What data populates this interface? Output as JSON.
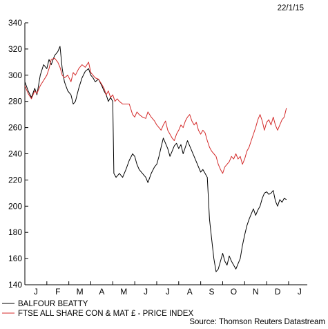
{
  "date_stamp": "22/1/15",
  "source": "Source: Thomson Reuters Datastream",
  "chart_data": {
    "type": "line",
    "x_ticks": [
      "J",
      "F",
      "M",
      "A",
      "M",
      "J",
      "J",
      "A",
      "S",
      "O",
      "N",
      "D",
      "J"
    ],
    "x_range": [
      0,
      12.85
    ],
    "ylim": [
      140,
      340
    ],
    "y_ticks": [
      140,
      160,
      180,
      200,
      220,
      240,
      260,
      280,
      300,
      320,
      340
    ],
    "grid": false,
    "legend_position": "bottom-left",
    "series": [
      {
        "name": "BALFOUR BEATTY",
        "color": "#000000",
        "points": [
          [
            0.0,
            295
          ],
          [
            0.15,
            288
          ],
          [
            0.3,
            283
          ],
          [
            0.45,
            290
          ],
          [
            0.55,
            285
          ],
          [
            0.7,
            300
          ],
          [
            0.85,
            308
          ],
          [
            1.0,
            305
          ],
          [
            1.1,
            312
          ],
          [
            1.2,
            308
          ],
          [
            1.35,
            315
          ],
          [
            1.5,
            318
          ],
          [
            1.6,
            322
          ],
          [
            1.7,
            305
          ],
          [
            1.8,
            295
          ],
          [
            1.95,
            288
          ],
          [
            2.1,
            285
          ],
          [
            2.2,
            278
          ],
          [
            2.3,
            280
          ],
          [
            2.45,
            290
          ],
          [
            2.6,
            298
          ],
          [
            2.75,
            303
          ],
          [
            2.9,
            305
          ],
          [
            3.0,
            300
          ],
          [
            3.1,
            298
          ],
          [
            3.2,
            295
          ],
          [
            3.35,
            297
          ],
          [
            3.5,
            292
          ],
          [
            3.6,
            288
          ],
          [
            3.7,
            285
          ],
          [
            3.8,
            280
          ],
          [
            3.9,
            283
          ],
          [
            4.0,
            280
          ],
          [
            4.05,
            225
          ],
          [
            4.15,
            222
          ],
          [
            4.3,
            225
          ],
          [
            4.45,
            222
          ],
          [
            4.6,
            228
          ],
          [
            4.75,
            235
          ],
          [
            4.9,
            240
          ],
          [
            5.0,
            238
          ],
          [
            5.1,
            232
          ],
          [
            5.2,
            228
          ],
          [
            5.35,
            225
          ],
          [
            5.5,
            222
          ],
          [
            5.6,
            218
          ],
          [
            5.75,
            225
          ],
          [
            5.9,
            230
          ],
          [
            6.0,
            232
          ],
          [
            6.1,
            238
          ],
          [
            6.2,
            245
          ],
          [
            6.3,
            252
          ],
          [
            6.4,
            248
          ],
          [
            6.5,
            244
          ],
          [
            6.6,
            238
          ],
          [
            6.7,
            242
          ],
          [
            6.8,
            246
          ],
          [
            6.9,
            248
          ],
          [
            7.0,
            244
          ],
          [
            7.1,
            247
          ],
          [
            7.2,
            240
          ],
          [
            7.3,
            245
          ],
          [
            7.4,
            250
          ],
          [
            7.5,
            246
          ],
          [
            7.6,
            242
          ],
          [
            7.7,
            238
          ],
          [
            7.8,
            234
          ],
          [
            7.9,
            230
          ],
          [
            8.0,
            226
          ],
          [
            8.1,
            228
          ],
          [
            8.2,
            225
          ],
          [
            8.3,
            222
          ],
          [
            8.4,
            190
          ],
          [
            8.5,
            175
          ],
          [
            8.6,
            160
          ],
          [
            8.7,
            150
          ],
          [
            8.8,
            152
          ],
          [
            8.9,
            158
          ],
          [
            9.0,
            164
          ],
          [
            9.1,
            158
          ],
          [
            9.2,
            155
          ],
          [
            9.3,
            162
          ],
          [
            9.4,
            158
          ],
          [
            9.5,
            155
          ],
          [
            9.6,
            152
          ],
          [
            9.7,
            156
          ],
          [
            9.8,
            160
          ],
          [
            9.9,
            170
          ],
          [
            10.0,
            178
          ],
          [
            10.1,
            185
          ],
          [
            10.2,
            190
          ],
          [
            10.3,
            194
          ],
          [
            10.4,
            198
          ],
          [
            10.5,
            193
          ],
          [
            10.6,
            197
          ],
          [
            10.7,
            200
          ],
          [
            10.8,
            206
          ],
          [
            10.9,
            210
          ],
          [
            11.0,
            211
          ],
          [
            11.1,
            209
          ],
          [
            11.2,
            210
          ],
          [
            11.3,
            212
          ],
          [
            11.4,
            204
          ],
          [
            11.5,
            200
          ],
          [
            11.6,
            205
          ],
          [
            11.7,
            203
          ],
          [
            11.8,
            206
          ],
          [
            11.9,
            205
          ]
        ]
      },
      {
        "name": "FTSE ALL SHARE CON & MAT £ - PRICE INDEX",
        "color": "#d42a2a",
        "points": [
          [
            0.0,
            292
          ],
          [
            0.15,
            286
          ],
          [
            0.3,
            282
          ],
          [
            0.45,
            288
          ],
          [
            0.55,
            286
          ],
          [
            0.7,
            292
          ],
          [
            0.85,
            296
          ],
          [
            1.0,
            300
          ],
          [
            1.1,
            305
          ],
          [
            1.2,
            312
          ],
          [
            1.35,
            313
          ],
          [
            1.5,
            310
          ],
          [
            1.6,
            306
          ],
          [
            1.7,
            300
          ],
          [
            1.8,
            298
          ],
          [
            1.95,
            300
          ],
          [
            2.1,
            295
          ],
          [
            2.2,
            302
          ],
          [
            2.3,
            300
          ],
          [
            2.45,
            305
          ],
          [
            2.6,
            308
          ],
          [
            2.75,
            306
          ],
          [
            2.9,
            310
          ],
          [
            3.0,
            302
          ],
          [
            3.1,
            300
          ],
          [
            3.2,
            298
          ],
          [
            3.35,
            297
          ],
          [
            3.5,
            293
          ],
          [
            3.6,
            290
          ],
          [
            3.7,
            285
          ],
          [
            3.8,
            288
          ],
          [
            3.9,
            283
          ],
          [
            4.0,
            285
          ],
          [
            4.1,
            280
          ],
          [
            4.2,
            282
          ],
          [
            4.3,
            280
          ],
          [
            4.45,
            278
          ],
          [
            4.6,
            278
          ],
          [
            4.75,
            278
          ],
          [
            4.9,
            270
          ],
          [
            5.0,
            268
          ],
          [
            5.1,
            272
          ],
          [
            5.2,
            270
          ],
          [
            5.35,
            268
          ],
          [
            5.5,
            267
          ],
          [
            5.6,
            272
          ],
          [
            5.75,
            268
          ],
          [
            5.9,
            265
          ],
          [
            6.0,
            262
          ],
          [
            6.1,
            260
          ],
          [
            6.2,
            258
          ],
          [
            6.3,
            262
          ],
          [
            6.4,
            265
          ],
          [
            6.5,
            258
          ],
          [
            6.6,
            255
          ],
          [
            6.7,
            252
          ],
          [
            6.8,
            250
          ],
          [
            6.9,
            255
          ],
          [
            7.0,
            258
          ],
          [
            7.1,
            262
          ],
          [
            7.2,
            260
          ],
          [
            7.3,
            265
          ],
          [
            7.4,
            268
          ],
          [
            7.5,
            270
          ],
          [
            7.6,
            265
          ],
          [
            7.7,
            262
          ],
          [
            7.8,
            264
          ],
          [
            7.9,
            258
          ],
          [
            8.0,
            255
          ],
          [
            8.1,
            258
          ],
          [
            8.2,
            256
          ],
          [
            8.3,
            250
          ],
          [
            8.4,
            245
          ],
          [
            8.5,
            242
          ],
          [
            8.6,
            240
          ],
          [
            8.7,
            238
          ],
          [
            8.8,
            232
          ],
          [
            8.9,
            228
          ],
          [
            9.0,
            225
          ],
          [
            9.1,
            230
          ],
          [
            9.2,
            232
          ],
          [
            9.3,
            234
          ],
          [
            9.4,
            238
          ],
          [
            9.5,
            236
          ],
          [
            9.6,
            240
          ],
          [
            9.7,
            236
          ],
          [
            9.8,
            238
          ],
          [
            9.9,
            232
          ],
          [
            10.0,
            236
          ],
          [
            10.1,
            242
          ],
          [
            10.2,
            245
          ],
          [
            10.3,
            250
          ],
          [
            10.4,
            255
          ],
          [
            10.5,
            260
          ],
          [
            10.6,
            266
          ],
          [
            10.7,
            270
          ],
          [
            10.8,
            265
          ],
          [
            10.9,
            258
          ],
          [
            11.0,
            264
          ],
          [
            11.1,
            266
          ],
          [
            11.2,
            262
          ],
          [
            11.3,
            268
          ],
          [
            11.4,
            262
          ],
          [
            11.5,
            258
          ],
          [
            11.6,
            262
          ],
          [
            11.7,
            266
          ],
          [
            11.8,
            268
          ],
          [
            11.9,
            275
          ]
        ]
      }
    ]
  }
}
